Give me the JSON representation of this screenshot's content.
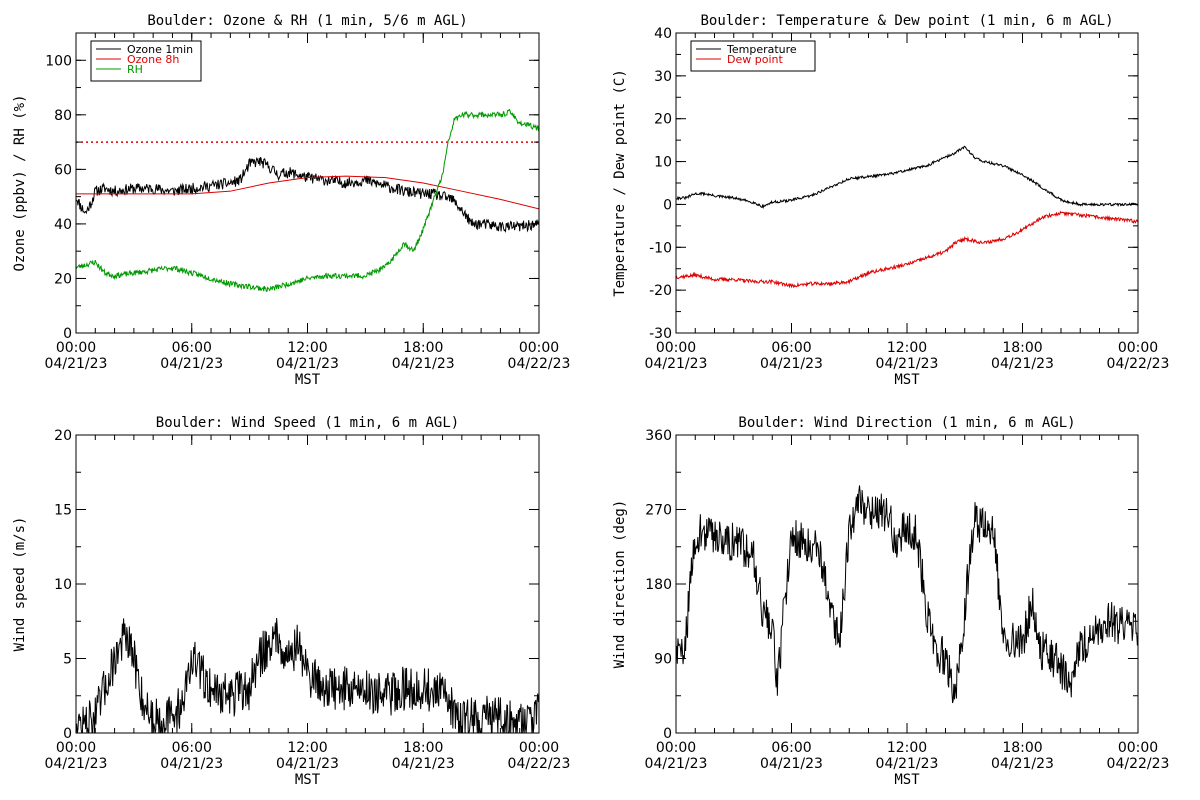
{
  "chart_data": [
    {
      "id": "ozone-rh",
      "type": "line",
      "title": "Boulder: Ozone & RH (1 min, 5/6 m AGL)",
      "ylabel": "Ozone (ppbv) / RH (%)",
      "xlabel": "MST",
      "ylim": [
        0,
        110
      ],
      "yticks": [
        0,
        20,
        40,
        60,
        80,
        100
      ],
      "yminor": 10,
      "xlim": [
        0,
        24
      ],
      "xticks": [
        0,
        6,
        12,
        18,
        24
      ],
      "xticklabels": [
        {
          "time": "00:00",
          "date": "04/21/23"
        },
        {
          "time": "06:00",
          "date": "04/21/23"
        },
        {
          "time": "12:00",
          "date": "04/21/23"
        },
        {
          "time": "18:00",
          "date": "04/21/23"
        },
        {
          "time": "00:00",
          "date": "04/22/23"
        }
      ],
      "legend": "top-left",
      "reference_line": {
        "y": 70,
        "color": "#dd0000",
        "style": "dotted"
      },
      "series": [
        {
          "name": "Ozone 1min",
          "color": "#000000",
          "noise": 2.0,
          "seed": 11,
          "x": [
            0,
            0.2,
            0.5,
            0.8,
            1.0,
            1.5,
            2,
            3,
            4,
            5,
            6,
            7,
            8,
            8.5,
            9,
            9.5,
            10,
            10.5,
            11,
            11.5,
            12,
            13,
            14,
            15,
            16,
            17,
            18,
            18.5,
            19,
            19.5,
            20,
            20.5,
            21,
            22,
            23,
            24
          ],
          "y": [
            50,
            47,
            44,
            48,
            52,
            53,
            52,
            53,
            53,
            52,
            53,
            54,
            55,
            56,
            62,
            63,
            61,
            58,
            59,
            58,
            57,
            56,
            55,
            56,
            54,
            52,
            51,
            51,
            50,
            49,
            45,
            40,
            40,
            39,
            39,
            40
          ]
        },
        {
          "name": "Ozone 8h",
          "color": "#dd0000",
          "noise": 0,
          "x": [
            0,
            2,
            4,
            6,
            8,
            10,
            12,
            14,
            16,
            18,
            20,
            22,
            24
          ],
          "y": [
            51,
            51,
            51,
            51,
            52,
            55,
            57,
            57.5,
            57,
            55,
            52,
            49,
            45.5
          ]
        },
        {
          "name": "RH",
          "color": "#009900",
          "noise": 1.0,
          "seed": 23,
          "x": [
            0,
            0.5,
            1,
            1.5,
            2,
            3,
            4,
            5,
            6,
            7,
            8,
            9,
            10,
            11,
            12,
            13,
            14,
            15,
            16,
            16.5,
            17,
            17.5,
            18,
            18.5,
            19,
            19.3,
            19.6,
            20,
            20.5,
            21,
            22,
            22.5,
            23,
            24
          ],
          "y": [
            24,
            25,
            26,
            22,
            21,
            22,
            23,
            24,
            22,
            20,
            18,
            17,
            16,
            18,
            20,
            21,
            21,
            21,
            24,
            28,
            33,
            30,
            38,
            48,
            58,
            70,
            78,
            80,
            80,
            80,
            80,
            81,
            77,
            75
          ]
        }
      ]
    },
    {
      "id": "temp-dew",
      "type": "line",
      "title": "Boulder: Temperature & Dew point (1 min, 6 m AGL)",
      "ylabel": "Temperature / Dew point (C)",
      "xlabel": "MST",
      "ylim": [
        -30,
        40
      ],
      "yticks": [
        -30,
        -20,
        -10,
        0,
        10,
        20,
        30,
        40
      ],
      "yminor": 5,
      "xlim": [
        0,
        24
      ],
      "xticks": [
        0,
        6,
        12,
        18,
        24
      ],
      "xticklabels": [
        {
          "time": "00:00",
          "date": "04/21/23"
        },
        {
          "time": "06:00",
          "date": "04/21/23"
        },
        {
          "time": "12:00",
          "date": "04/21/23"
        },
        {
          "time": "18:00",
          "date": "04/21/23"
        },
        {
          "time": "00:00",
          "date": "04/22/23"
        }
      ],
      "legend": "top-left",
      "series": [
        {
          "name": "Temperature",
          "color": "#000000",
          "noise": 0.3,
          "seed": 31,
          "x": [
            0,
            0.5,
            1,
            1.5,
            2,
            3,
            4,
            4.5,
            5,
            6,
            7,
            8,
            9,
            10,
            11,
            12,
            13,
            14,
            14.5,
            15,
            15.5,
            16,
            17,
            18,
            19,
            20,
            21,
            22,
            23,
            24
          ],
          "y": [
            1.5,
            1.5,
            2.5,
            2.5,
            2,
            1.5,
            0.5,
            -0.5,
            0.5,
            1,
            2,
            4,
            6,
            6.5,
            7,
            8,
            9,
            11,
            12,
            13.5,
            11,
            10,
            9,
            7,
            4,
            1,
            0,
            0,
            0,
            0
          ]
        },
        {
          "name": "Dew point",
          "color": "#dd0000",
          "noise": 0.4,
          "seed": 37,
          "x": [
            0,
            1,
            2,
            3,
            4,
            5,
            6,
            7,
            8,
            9,
            10,
            11,
            12,
            13,
            14,
            14.5,
            15,
            16,
            17,
            18,
            19,
            20,
            21,
            22,
            23,
            24
          ],
          "y": [
            -17,
            -16.5,
            -17.5,
            -17.5,
            -18,
            -18,
            -19,
            -18.5,
            -18.5,
            -18,
            -16,
            -15,
            -14,
            -12.5,
            -11,
            -9,
            -8,
            -9,
            -8,
            -6,
            -3,
            -2,
            -2.5,
            -3,
            -3.5,
            -4
          ]
        }
      ]
    },
    {
      "id": "wind-speed",
      "type": "line",
      "title": "Boulder: Wind Speed (1 min, 6 m AGL)",
      "ylabel": "Wind speed (m/s)",
      "xlabel": "MST",
      "ylim": [
        0,
        20
      ],
      "yticks": [
        0,
        5,
        10,
        15,
        20
      ],
      "yminor": 2.5,
      "xlim": [
        0,
        24
      ],
      "xticks": [
        0,
        6,
        12,
        18,
        24
      ],
      "xticklabels": [
        {
          "time": "00:00",
          "date": "04/21/23"
        },
        {
          "time": "06:00",
          "date": "04/21/23"
        },
        {
          "time": "12:00",
          "date": "04/21/23"
        },
        {
          "time": "18:00",
          "date": "04/21/23"
        },
        {
          "time": "00:00",
          "date": "04/22/23"
        }
      ],
      "series": [
        {
          "name": "",
          "color": "#000000",
          "noise": 1.5,
          "seed": 47,
          "x": [
            0,
            0.5,
            1,
            1.5,
            2,
            2.5,
            3,
            3.5,
            4,
            5,
            5.5,
            6,
            6.5,
            7,
            8,
            9,
            9.5,
            10,
            10.5,
            11,
            11.5,
            12,
            13,
            14,
            15,
            16,
            17,
            18,
            19,
            20,
            20.5,
            21,
            22,
            23,
            24
          ],
          "y": [
            0.5,
            0.5,
            1,
            3,
            5,
            6.5,
            5,
            2,
            1,
            1,
            2,
            5,
            4,
            3,
            2.5,
            3,
            5,
            6,
            6.5,
            5,
            6,
            4,
            3,
            3,
            3,
            2.5,
            3,
            3,
            2.5,
            1,
            1,
            1,
            1,
            0.8,
            1.2
          ]
        }
      ]
    },
    {
      "id": "wind-dir",
      "type": "line",
      "title": "Boulder: Wind Direction (1 min, 6 m AGL)",
      "ylabel": "Wind direction (deg)",
      "xlabel": "MST",
      "ylim": [
        0,
        360
      ],
      "yticks": [
        0,
        90,
        180,
        270,
        360
      ],
      "yminor": 45,
      "xlim": [
        0,
        24
      ],
      "xticks": [
        0,
        6,
        12,
        18,
        24
      ],
      "xticklabels": [
        {
          "time": "00:00",
          "date": "04/21/23"
        },
        {
          "time": "06:00",
          "date": "04/21/23"
        },
        {
          "time": "12:00",
          "date": "04/21/23"
        },
        {
          "time": "18:00",
          "date": "04/21/23"
        },
        {
          "time": "00:00",
          "date": "04/22/23"
        }
      ],
      "series": [
        {
          "name": "",
          "color": "#000000",
          "noise": 25,
          "seed": 59,
          "x": [
            0,
            0.3,
            0.6,
            1,
            2,
            3,
            4,
            4.5,
            5,
            5.3,
            5.6,
            6,
            6.5,
            7,
            7.5,
            8,
            8.5,
            9,
            9.5,
            10,
            10.5,
            11,
            11.5,
            12,
            12.5,
            13,
            13.5,
            14,
            14.5,
            15,
            15.5,
            16,
            16.5,
            17,
            18,
            18.5,
            19,
            19.5,
            20,
            20.5,
            21,
            22,
            22.5,
            23,
            24
          ],
          "y": [
            100,
            90,
            140,
            240,
            240,
            230,
            220,
            150,
            120,
            60,
            150,
            240,
            230,
            230,
            220,
            150,
            110,
            250,
            280,
            270,
            270,
            260,
            230,
            250,
            240,
            150,
            100,
            90,
            40,
            150,
            260,
            250,
            240,
            120,
            110,
            160,
            100,
            90,
            80,
            60,
            100,
            130,
            140,
            130,
            120
          ]
        }
      ]
    }
  ]
}
